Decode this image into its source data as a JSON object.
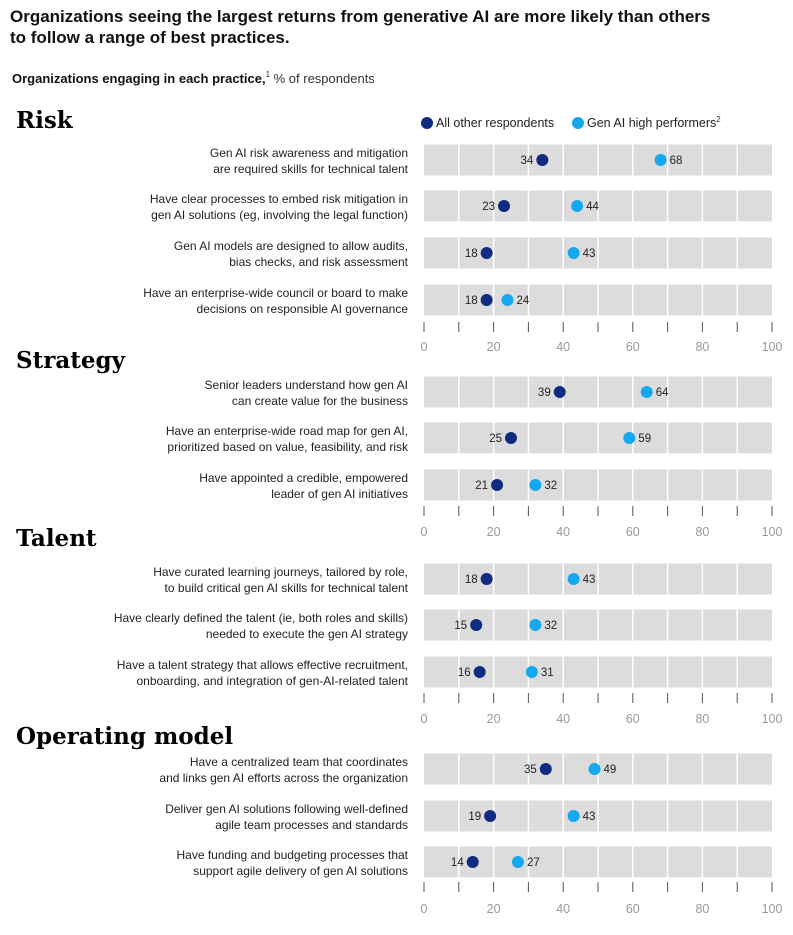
{
  "title": "Organizations seeing the largest returns from generative AI are more likely than others to follow a range of best practices.",
  "title_lines": [
    "Organizations seeing the largest returns from generative AI are more likely than others",
    "to follow a range of best practices."
  ],
  "subtitle_bold": "Organizations engaging in each practice,",
  "subtitle_sup": "1",
  "subtitle_rest": " % of respondents",
  "colors": {
    "others": "#0f2b82",
    "high": "#16a8ee",
    "track": "#dcdcdc"
  },
  "chart_data": {
    "type": "dot",
    "xlim": [
      0,
      100
    ],
    "ticks": [
      0,
      20,
      40,
      60,
      80,
      100
    ],
    "legend": [
      {
        "name": "All other respondents",
        "sup": ""
      },
      {
        "name": "Gen AI high performers",
        "sup": "2"
      }
    ],
    "sections": [
      {
        "name": "Risk",
        "rows": [
          {
            "label": [
              "Gen AI risk awareness and mitigation",
              "are required skills for technical talent"
            ],
            "others": 34,
            "high": 68
          },
          {
            "label": [
              "Have clear processes to embed risk mitigation in",
              "gen AI solutions (eg, involving the legal function)"
            ],
            "others": 23,
            "high": 44
          },
          {
            "label": [
              "Gen AI models are designed to allow audits,",
              "bias checks, and risk assessment"
            ],
            "others": 18,
            "high": 43
          },
          {
            "label": [
              "Have an enterprise-wide council or board to make",
              "decisions on responsible AI governance"
            ],
            "others": 18,
            "high": 24
          }
        ]
      },
      {
        "name": "Strategy",
        "rows": [
          {
            "label": [
              "Senior leaders understand how gen AI",
              "can create value for the business"
            ],
            "others": 39,
            "high": 64
          },
          {
            "label": [
              "Have an enterprise-wide road map for gen AI,",
              "prioritized based on value, feasibility, and risk"
            ],
            "others": 25,
            "high": 59
          },
          {
            "label": [
              "Have appointed a credible, empowered",
              "leader of gen AI initiatives"
            ],
            "others": 21,
            "high": 32
          }
        ]
      },
      {
        "name": "Talent",
        "rows": [
          {
            "label": [
              "Have curated learning journeys, tailored by role,",
              "to build critical gen AI skills for technical talent"
            ],
            "others": 18,
            "high": 43
          },
          {
            "label": [
              "Have clearly defined the talent (ie, both roles and skills)",
              "needed to execute the gen AI strategy"
            ],
            "others": 15,
            "high": 32
          },
          {
            "label": [
              "Have a talent strategy that allows effective recruitment,",
              "onboarding, and integration of gen-AI-related talent"
            ],
            "others": 16,
            "high": 31
          }
        ]
      },
      {
        "name": "Operating model",
        "rows": [
          {
            "label": [
              "Have a centralized team that coordinates",
              "and links gen AI efforts across the organization"
            ],
            "others": 35,
            "high": 49
          },
          {
            "label": [
              "Deliver gen AI solutions following well-defined",
              "agile team processes and standards"
            ],
            "others": 19,
            "high": 43
          },
          {
            "label": [
              "Have funding and budgeting processes that",
              "support agile delivery of gen AI solutions"
            ],
            "others": 14,
            "high": 27
          }
        ]
      }
    ]
  }
}
